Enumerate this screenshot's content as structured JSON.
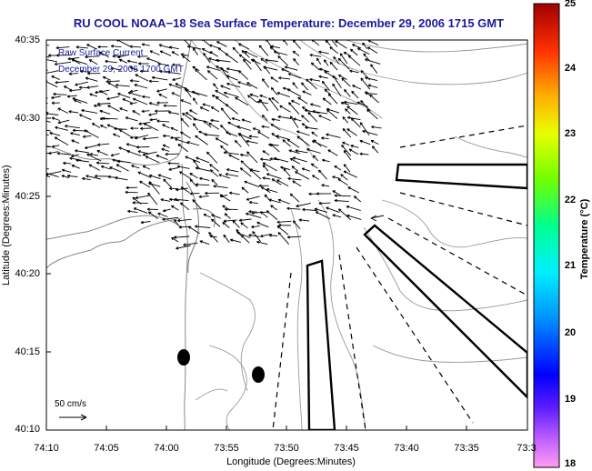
{
  "title": "RU COOL  NOAA−18  Sea Surface Temperature:  December 29, 2006 1715 GMT",
  "legend": {
    "line1": "Raw Surface Current",
    "line2": "December 29, 2006 1700 GMT"
  },
  "scale": {
    "label": "50 cm/s"
  },
  "axes": {
    "ylabel": "Latitude (Degrees:Minutes)",
    "xlabel": "Longitude (Degrees:Minutes)",
    "yticks": [
      "40:35",
      "40:30",
      "40:25",
      "40:20",
      "40:15",
      "40:10"
    ],
    "xticks": [
      "74:10",
      "74:05",
      "74:00",
      "73:55",
      "73:50",
      "73:45",
      "73:40",
      "73:35",
      "73:3"
    ]
  },
  "colorbar": {
    "label": "Temperature (°C)",
    "ticks": [
      "25",
      "24",
      "23",
      "22",
      "21",
      "20",
      "19",
      "18"
    ],
    "range": [
      18,
      25
    ],
    "colors": [
      "#ff9cf0",
      "#9a4cff",
      "#0000ff",
      "#0080ff",
      "#00e8ff",
      "#00ff80",
      "#80ff00",
      "#e8ff00",
      "#ffc000",
      "#ff6000",
      "#ff0000",
      "#a00000"
    ]
  },
  "map": {
    "lon_range": [
      "74:10",
      "73:3"
    ],
    "lat_range": [
      "40:10",
      "40:35"
    ]
  }
}
